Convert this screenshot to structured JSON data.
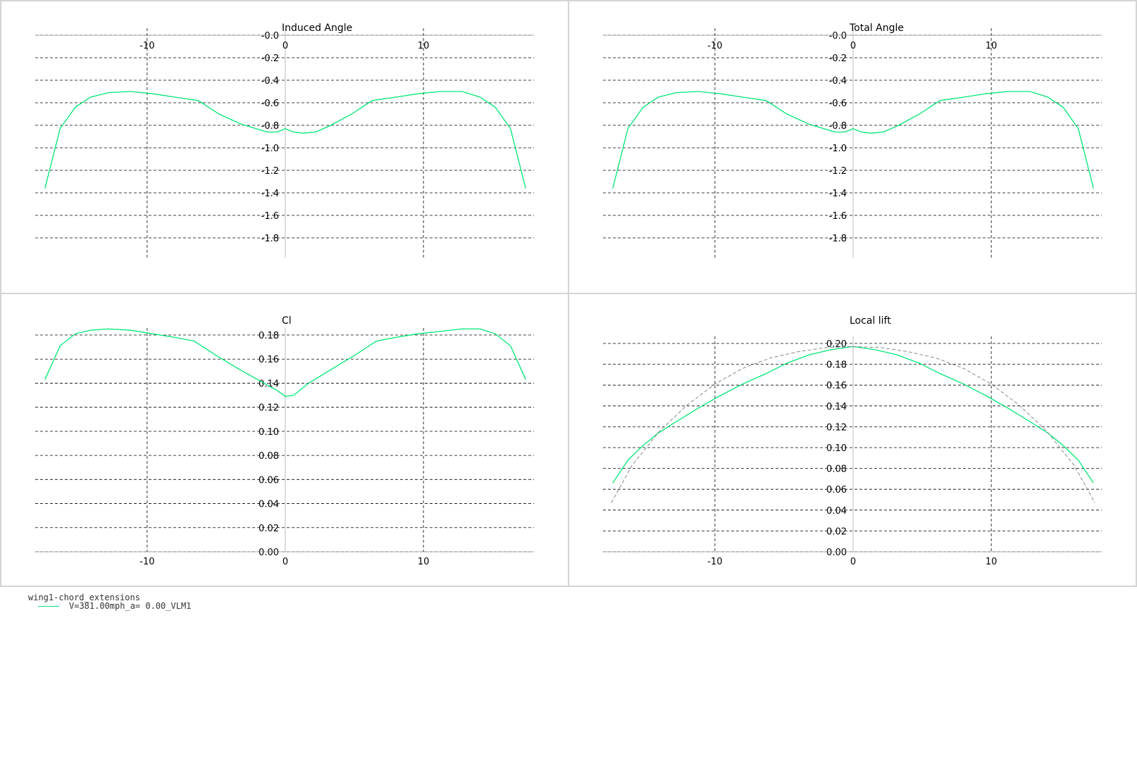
{
  "colors": {
    "series": "#00e676",
    "grid": "#000000",
    "reference": "#888888"
  },
  "legend": {
    "title": "wing1-chord_extensions",
    "series_label": "V=381.00mph_a= 0.00_VLM1"
  },
  "chart_data": [
    {
      "type": "line",
      "title": "Induced Angle",
      "xlim": [
        -18,
        18
      ],
      "ylim": [
        0.0,
        -2.0
      ],
      "xticks": [
        "-10",
        "0",
        "10"
      ],
      "xtick_values": [
        -10,
        0,
        10
      ],
      "yticks": [
        "-0.0",
        "-0.2",
        "-0.4",
        "-0.6",
        "-0.8",
        "-1.0",
        "-1.2",
        "-1.4",
        "-1.6",
        "-1.8"
      ],
      "ytick_values": [
        0.0,
        -0.2,
        -0.4,
        -0.6,
        -0.8,
        -1.0,
        -1.2,
        -1.4,
        -1.6,
        -1.8
      ],
      "x_axis_position": "top",
      "grid": true,
      "series": [
        {
          "name": "V=381.00mph_a= 0.00_VLM1",
          "x": [
            -17.4,
            -16.3,
            -15.2,
            -14.1,
            -12.8,
            -11.2,
            -9.6,
            -8.0,
            -6.3,
            -4.8,
            -3.2,
            -1.3,
            -0.6,
            0.0,
            0.6,
            1.3,
            2.2,
            3.3,
            4.8,
            6.3,
            8.0,
            9.6,
            11.2,
            12.8,
            14.1,
            15.2,
            16.3,
            17.4
          ],
          "y": [
            -1.36,
            -0.83,
            -0.64,
            -0.55,
            -0.51,
            -0.5,
            -0.52,
            -0.55,
            -0.58,
            -0.7,
            -0.79,
            -0.86,
            -0.86,
            -0.83,
            -0.86,
            -0.87,
            -0.86,
            -0.8,
            -0.7,
            -0.58,
            -0.55,
            -0.52,
            -0.5,
            -0.5,
            -0.55,
            -0.64,
            -0.83,
            -1.36
          ]
        }
      ]
    },
    {
      "type": "line",
      "title": "Total Angle",
      "xlim": [
        -18,
        18
      ],
      "ylim": [
        0.0,
        -2.0
      ],
      "xticks": [
        "-10",
        "0",
        "10"
      ],
      "xtick_values": [
        -10,
        0,
        10
      ],
      "yticks": [
        "-0.0",
        "-0.2",
        "-0.4",
        "-0.6",
        "-0.8",
        "-1.0",
        "-1.2",
        "-1.4",
        "-1.6",
        "-1.8"
      ],
      "ytick_values": [
        0.0,
        -0.2,
        -0.4,
        -0.6,
        -0.8,
        -1.0,
        -1.2,
        -1.4,
        -1.6,
        -1.8
      ],
      "x_axis_position": "top",
      "grid": true,
      "series": [
        {
          "name": "V=381.00mph_a= 0.00_VLM1",
          "x": [
            -17.4,
            -16.3,
            -15.2,
            -14.1,
            -12.8,
            -11.2,
            -9.6,
            -8.0,
            -6.3,
            -4.8,
            -3.2,
            -1.3,
            -0.6,
            0.0,
            0.6,
            1.3,
            2.2,
            3.3,
            4.8,
            6.3,
            8.0,
            9.6,
            11.2,
            12.8,
            14.1,
            15.2,
            16.3,
            17.4
          ],
          "y": [
            -1.36,
            -0.83,
            -0.64,
            -0.55,
            -0.51,
            -0.5,
            -0.52,
            -0.55,
            -0.58,
            -0.7,
            -0.79,
            -0.86,
            -0.86,
            -0.83,
            -0.86,
            -0.87,
            -0.86,
            -0.8,
            -0.7,
            -0.58,
            -0.55,
            -0.52,
            -0.5,
            -0.5,
            -0.55,
            -0.64,
            -0.83,
            -1.36
          ]
        }
      ]
    },
    {
      "type": "line",
      "title": "Cl",
      "xlim": [
        -18,
        18
      ],
      "ylim": [
        0.0,
        0.18
      ],
      "xticks": [
        "-10",
        "0",
        "10"
      ],
      "xtick_values": [
        -10,
        0,
        10
      ],
      "yticks": [
        "0.00",
        "0.02",
        "0.04",
        "0.06",
        "0.08",
        "0.10",
        "0.12",
        "0.14",
        "0.16",
        "0.18"
      ],
      "ytick_values": [
        0.0,
        0.02,
        0.04,
        0.06,
        0.08,
        0.1,
        0.12,
        0.14,
        0.16,
        0.18
      ],
      "x_axis_position": "bottom",
      "grid": true,
      "series": [
        {
          "name": "V=381.00mph_a= 0.00_VLM1",
          "x": [
            -17.4,
            -16.3,
            -15.2,
            -14.1,
            -12.8,
            -11.2,
            -9.6,
            -8.0,
            -6.6,
            -5.0,
            -3.4,
            -1.7,
            -0.6,
            0.0,
            0.6,
            1.7,
            3.4,
            5.0,
            6.6,
            8.0,
            9.6,
            11.2,
            12.8,
            14.1,
            15.2,
            16.3,
            17.4
          ],
          "y": [
            0.143,
            0.171,
            0.181,
            0.184,
            0.185,
            0.184,
            0.181,
            0.178,
            0.175,
            0.163,
            0.152,
            0.141,
            0.134,
            0.129,
            0.13,
            0.14,
            0.152,
            0.163,
            0.175,
            0.178,
            0.181,
            0.183,
            0.185,
            0.185,
            0.181,
            0.171,
            0.143
          ]
        }
      ]
    },
    {
      "type": "line",
      "title": "Local lift",
      "xlim": [
        -18,
        18
      ],
      "ylim": [
        0.0,
        0.2
      ],
      "xticks": [
        "-10",
        "0",
        "10"
      ],
      "xtick_values": [
        -10,
        0,
        10
      ],
      "yticks": [
        "0.00",
        "0.02",
        "0.04",
        "0.06",
        "0.08",
        "0.10",
        "0.12",
        "0.14",
        "0.16",
        "0.18",
        "0.20"
      ],
      "ytick_values": [
        0.0,
        0.02,
        0.04,
        0.06,
        0.08,
        0.1,
        0.12,
        0.14,
        0.16,
        0.18,
        0.2
      ],
      "x_axis_position": "bottom",
      "grid": true,
      "series": [
        {
          "name": "V=381.00mph_a= 0.00_VLM1",
          "x": [
            -17.4,
            -16.3,
            -15.2,
            -14.1,
            -12.8,
            -11.2,
            -9.6,
            -8.0,
            -6.3,
            -4.8,
            -3.2,
            -1.6,
            0.0,
            1.6,
            3.2,
            4.8,
            6.3,
            8.0,
            9.6,
            11.2,
            12.8,
            14.1,
            15.2,
            16.3,
            17.4
          ],
          "y": [
            0.066,
            0.088,
            0.102,
            0.114,
            0.125,
            0.138,
            0.15,
            0.161,
            0.171,
            0.181,
            0.189,
            0.194,
            0.197,
            0.194,
            0.189,
            0.181,
            0.171,
            0.161,
            0.15,
            0.138,
            0.125,
            0.114,
            0.102,
            0.088,
            0.066
          ]
        },
        {
          "name": "",
          "style": "reference-dashed",
          "x": [
            -17.5,
            -16.0,
            -14.0,
            -12.0,
            -10.0,
            -8.0,
            -6.0,
            -4.0,
            -2.0,
            0.0,
            2.0,
            4.0,
            6.0,
            8.0,
            10.0,
            12.0,
            14.0,
            16.0,
            17.5
          ],
          "y": [
            0.047,
            0.083,
            0.116,
            0.141,
            0.161,
            0.176,
            0.186,
            0.192,
            0.196,
            0.197,
            0.196,
            0.192,
            0.186,
            0.176,
            0.161,
            0.141,
            0.116,
            0.083,
            0.047
          ]
        }
      ]
    }
  ]
}
